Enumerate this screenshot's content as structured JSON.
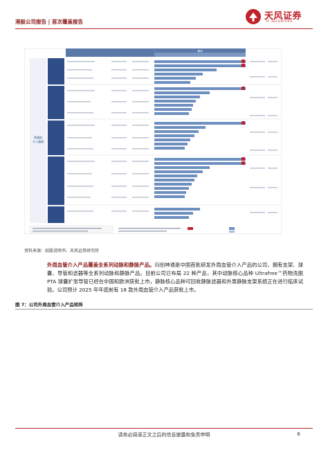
{
  "header": {
    "left": "港股公司报告 | 首次覆盖报告",
    "logo_cn": "天风证券",
    "logo_en": "TF SECURITIES"
  },
  "pipeline": {
    "header_top": "期间",
    "header_mid": "领域/疾病",
    "header_right": "国内首次\n商业化时间",
    "header_right2": "预计获批/\n上市时间",
    "sub_headers": [
      "设计",
      "可行性",
      "临床试验",
      "注册审批",
      "获批上市"
    ],
    "left_group": "神通血\n介入器\n械",
    "categories": [
      "颅内动脉\n狭窄",
      "颅内血\n栓",
      "动脉瘤\n相关",
      "颅内颅\n外",
      "颈动脉\n狭窄"
    ],
    "legend": [
      "核心产品",
      "中国销售",
      "海外获批"
    ],
    "notes": "◆ 核心产品  ▲ 中国获批  ◇ 在研产品",
    "colors": {
      "bar": "#6d8fc0",
      "bar_light": "#a9c0dd",
      "flag": "#c0222a",
      "cat": "#2f4e87",
      "header": "#5a78a8"
    }
  },
  "source": "资料来源：招股说明书、天风证券研究所",
  "paragraph": {
    "lead": "外周血管介入产品覆盖全系列动脉和静脉产品。",
    "body": "归创神通是中国首批研发外周血管介入产品的公司，拥有支架、球囊、导管和滤器等全系列动脉和静脉产品。目前公司已布局 22 种产品，其中动脉核心品种 Ultrafree™药物洗脱 PTA 球囊扩张导管已经在中国和欧洲获批上市，静脉核心品种可回收静脉滤器和外周静脉支架系统正在进行临床试验。公司预计 2025 年年底前有 18 款外周血管介入产品获批上市。"
  },
  "figure_title": "图 7：公司外周血管介入产品矩阵",
  "footer": {
    "text": "请务必阅读正文之后的信息披露和免责申明",
    "page": "6"
  }
}
